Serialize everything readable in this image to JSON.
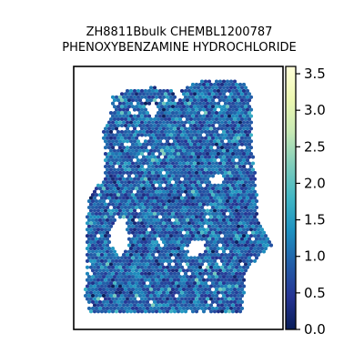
{
  "chart_data": {
    "type": "heatmap",
    "title_lines": [
      "ZH8811Bbulk CHEMBL1200787",
      "PHENOXYBENZAMINE HYDROCHLORIDE"
    ],
    "colorbar": {
      "colormap": "YlGnBu",
      "range": [
        0.0,
        3.6
      ],
      "ticks": [
        0.0,
        0.5,
        1.0,
        1.5,
        2.0,
        2.5,
        3.0,
        3.5
      ],
      "tick_labels": [
        "0.0",
        "0.5",
        "1.0",
        "1.5",
        "2.0",
        "2.5",
        "3.0",
        "3.5"
      ]
    },
    "colors": {
      "low": "#081d58",
      "mid": "#253494",
      "high": "#ffffd9"
    },
    "value_distribution": {
      "typical": 0.9,
      "spread": 0.35,
      "max_observed": 2.3
    }
  }
}
